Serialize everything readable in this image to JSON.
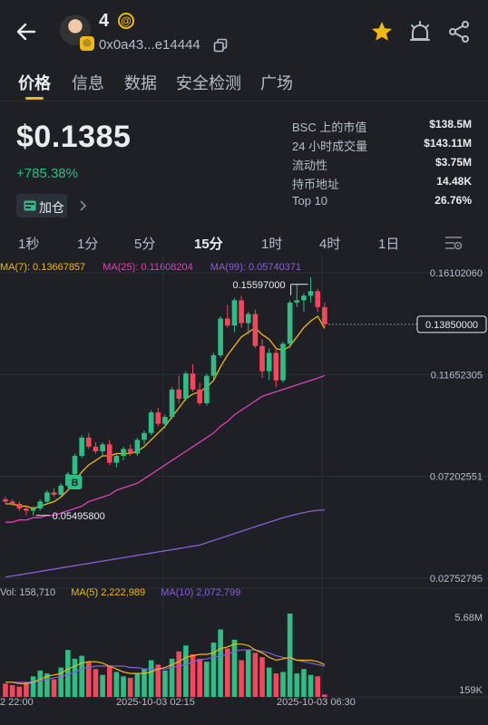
{
  "header": {
    "token_name": "4",
    "address": "0x0a43...e14444",
    "icons": [
      "back-arrow-icon",
      "at-icon",
      "copy-icon",
      "star-icon",
      "price-alert-icon",
      "share-icon"
    ],
    "star_color": "#f0b90b"
  },
  "tabs": [
    {
      "label": "价格",
      "active": true
    },
    {
      "label": "信息",
      "active": false
    },
    {
      "label": "数据",
      "active": false
    },
    {
      "label": "安全检测",
      "active": false
    },
    {
      "label": "广场",
      "active": false
    }
  ],
  "price": {
    "value": "$0.1385",
    "change": "+785.38%",
    "add_button": "加仓"
  },
  "stats": [
    {
      "label": "BSC 上的市值",
      "value": "$138.5M"
    },
    {
      "label": "24 小时成交量",
      "value": "$143.11M"
    },
    {
      "label": "流动性",
      "value": "$3.75M"
    },
    {
      "label": "持币地址",
      "value": "14.48K"
    },
    {
      "label": "Top 10",
      "value": "26.76%"
    }
  ],
  "intervals": [
    {
      "label": "1秒",
      "active": false
    },
    {
      "label": "1分",
      "active": false
    },
    {
      "label": "5分",
      "active": false
    },
    {
      "label": "15分",
      "active": true
    },
    {
      "label": "1时",
      "active": false
    },
    {
      "label": "4时",
      "active": false
    },
    {
      "label": "1日",
      "active": false
    }
  ],
  "ma_legend": {
    "ma7": "MA(7): 0.13667857",
    "ma25": "MA(25): 0.11608204",
    "ma99": "MA(99): 0.05740371"
  },
  "vol_legend": {
    "vol": "Vol: 158,710",
    "ma5": "MA(5) 2,222,989",
    "ma10": "MA(10) 2,072,799"
  },
  "colors": {
    "up": "#2ebd85",
    "down": "#f6465d",
    "ma7": "#f0b90b",
    "ma25": "#e03fb5",
    "ma99": "#8a5fd6",
    "accent": "#f0b90b"
  },
  "chart_data": {
    "type": "candlestick",
    "price_axis_labels": [
      "0.16102060",
      "0.11652305",
      "0.07202551",
      "0.02752795"
    ],
    "price_axis_values": [
      0.1610206,
      0.11652305,
      0.07202551,
      0.02752795
    ],
    "current_price_label": "0.13850000",
    "current_price": 0.1385,
    "high_marker": {
      "label": "0.15597000",
      "value": 0.15597
    },
    "low_marker": {
      "label": "0.05495800",
      "value": 0.054958
    },
    "signal_badge": "B",
    "volume_axis_labels": [
      "5.68M",
      "159K"
    ],
    "volume_max": 5680000,
    "volume_min": 159000,
    "time_labels": [
      "2 22:00",
      "2025-10-03 02:15",
      "2025-10-03 06:30"
    ],
    "candles": [
      [
        0.062,
        0.063,
        0.06,
        0.061
      ],
      [
        0.061,
        0.062,
        0.059,
        0.06
      ],
      [
        0.06,
        0.061,
        0.057,
        0.058
      ],
      [
        0.058,
        0.059,
        0.055,
        0.057
      ],
      [
        0.057,
        0.059,
        0.0549,
        0.058
      ],
      [
        0.058,
        0.062,
        0.057,
        0.061
      ],
      [
        0.061,
        0.066,
        0.06,
        0.065
      ],
      [
        0.065,
        0.067,
        0.063,
        0.064
      ],
      [
        0.064,
        0.069,
        0.063,
        0.068
      ],
      [
        0.068,
        0.074,
        0.067,
        0.073
      ],
      [
        0.073,
        0.082,
        0.072,
        0.081
      ],
      [
        0.081,
        0.09,
        0.08,
        0.089
      ],
      [
        0.089,
        0.091,
        0.084,
        0.085
      ],
      [
        0.085,
        0.087,
        0.082,
        0.083
      ],
      [
        0.083,
        0.087,
        0.081,
        0.086
      ],
      [
        0.086,
        0.088,
        0.077,
        0.078
      ],
      [
        0.078,
        0.082,
        0.076,
        0.081
      ],
      [
        0.081,
        0.085,
        0.079,
        0.084
      ],
      [
        0.084,
        0.086,
        0.081,
        0.082
      ],
      [
        0.082,
        0.089,
        0.081,
        0.088
      ],
      [
        0.088,
        0.092,
        0.086,
        0.091
      ],
      [
        0.091,
        0.101,
        0.09,
        0.1
      ],
      [
        0.1,
        0.102,
        0.094,
        0.095
      ],
      [
        0.095,
        0.099,
        0.093,
        0.098
      ],
      [
        0.098,
        0.111,
        0.097,
        0.11
      ],
      [
        0.11,
        0.116,
        0.104,
        0.106
      ],
      [
        0.106,
        0.118,
        0.105,
        0.117
      ],
      [
        0.117,
        0.121,
        0.109,
        0.11
      ],
      [
        0.11,
        0.113,
        0.103,
        0.104
      ],
      [
        0.104,
        0.117,
        0.103,
        0.116
      ],
      [
        0.116,
        0.126,
        0.114,
        0.125
      ],
      [
        0.125,
        0.142,
        0.124,
        0.141
      ],
      [
        0.141,
        0.147,
        0.137,
        0.138
      ],
      [
        0.138,
        0.15,
        0.135,
        0.149
      ],
      [
        0.149,
        0.151,
        0.137,
        0.139
      ],
      [
        0.139,
        0.144,
        0.134,
        0.143
      ],
      [
        0.143,
        0.145,
        0.128,
        0.129
      ],
      [
        0.129,
        0.132,
        0.115,
        0.118
      ],
      [
        0.118,
        0.128,
        0.114,
        0.126
      ],
      [
        0.126,
        0.128,
        0.111,
        0.114
      ],
      [
        0.114,
        0.131,
        0.113,
        0.13
      ],
      [
        0.13,
        0.149,
        0.128,
        0.148
      ],
      [
        0.148,
        0.156,
        0.146,
        0.149
      ],
      [
        0.149,
        0.152,
        0.144,
        0.151
      ],
      [
        0.151,
        0.159,
        0.148,
        0.153
      ],
      [
        0.153,
        0.154,
        0.144,
        0.146
      ],
      [
        0.146,
        0.148,
        0.137,
        0.1385
      ]
    ],
    "volumes": [
      0.9,
      0.8,
      0.7,
      1.0,
      1.4,
      1.8,
      1.6,
      1.2,
      2.0,
      3.2,
      2.6,
      2.8,
      2.4,
      1.9,
      1.5,
      2.1,
      1.7,
      1.4,
      1.3,
      1.6,
      1.9,
      2.5,
      2.2,
      1.8,
      2.6,
      3.1,
      3.5,
      2.9,
      2.6,
      2.4,
      3.7,
      4.6,
      3.3,
      3.9,
      2.5,
      3.2,
      3.0,
      2.7,
      2.0,
      1.6,
      1.7,
      5.68,
      1.6,
      1.9,
      1.5,
      1.4,
      0.16
    ],
    "ma7": [
      0.06,
      0.06,
      0.059,
      0.059,
      0.058,
      0.059,
      0.06,
      0.061,
      0.063,
      0.066,
      0.07,
      0.074,
      0.077,
      0.079,
      0.081,
      0.081,
      0.082,
      0.082,
      0.082,
      0.083,
      0.085,
      0.088,
      0.091,
      0.094,
      0.098,
      0.102,
      0.106,
      0.108,
      0.109,
      0.111,
      0.114,
      0.12,
      0.125,
      0.129,
      0.133,
      0.135,
      0.137,
      0.134,
      0.132,
      0.128,
      0.127,
      0.129,
      0.133,
      0.137,
      0.14,
      0.142,
      0.1367
    ],
    "ma25": [
      0.052,
      0.052,
      0.053,
      0.053,
      0.054,
      0.054,
      0.055,
      0.055,
      0.056,
      0.057,
      0.058,
      0.059,
      0.061,
      0.062,
      0.063,
      0.064,
      0.066,
      0.067,
      0.068,
      0.069,
      0.071,
      0.073,
      0.075,
      0.077,
      0.079,
      0.081,
      0.083,
      0.085,
      0.087,
      0.089,
      0.091,
      0.094,
      0.096,
      0.099,
      0.101,
      0.103,
      0.105,
      0.107,
      0.108,
      0.109,
      0.11,
      0.111,
      0.112,
      0.113,
      0.114,
      0.115,
      0.1161
    ],
    "ma99": [
      0.028,
      0.0285,
      0.029,
      0.0295,
      0.03,
      0.0305,
      0.031,
      0.0315,
      0.032,
      0.0325,
      0.033,
      0.0335,
      0.034,
      0.0345,
      0.035,
      0.0355,
      0.036,
      0.0365,
      0.037,
      0.0375,
      0.038,
      0.0385,
      0.039,
      0.0395,
      0.04,
      0.0405,
      0.041,
      0.0415,
      0.042,
      0.043,
      0.044,
      0.045,
      0.046,
      0.047,
      0.048,
      0.049,
      0.05,
      0.051,
      0.052,
      0.053,
      0.054,
      0.0548,
      0.0555,
      0.0562,
      0.0568,
      0.0572,
      0.0574
    ],
    "vol_ma5": [
      1.0,
      1.0,
      0.9,
      0.9,
      1.0,
      1.2,
      1.4,
      1.5,
      1.6,
      1.9,
      2.1,
      2.3,
      2.4,
      2.4,
      2.3,
      2.1,
      1.9,
      1.7,
      1.6,
      1.6,
      1.6,
      1.7,
      1.9,
      2.0,
      2.2,
      2.4,
      2.7,
      2.8,
      2.9,
      2.9,
      3.0,
      3.3,
      3.4,
      3.6,
      3.6,
      3.5,
      3.2,
      3.0,
      2.7,
      2.5,
      2.6,
      2.7,
      2.5,
      2.5,
      2.5,
      2.4,
      2.2
    ],
    "vol_ma10": [
      1.0,
      1.0,
      1.0,
      1.0,
      1.0,
      1.1,
      1.2,
      1.3,
      1.4,
      1.5,
      1.7,
      1.9,
      2.0,
      2.1,
      2.1,
      2.1,
      2.1,
      2.1,
      2.0,
      2.0,
      1.9,
      1.9,
      1.9,
      1.9,
      2.0,
      2.1,
      2.2,
      2.4,
      2.5,
      2.6,
      2.7,
      2.8,
      2.9,
      3.1,
      3.2,
      3.2,
      3.2,
      3.1,
      3.0,
      2.8,
      2.7,
      2.6,
      2.5,
      2.4,
      2.3,
      2.2,
      2.1
    ]
  }
}
